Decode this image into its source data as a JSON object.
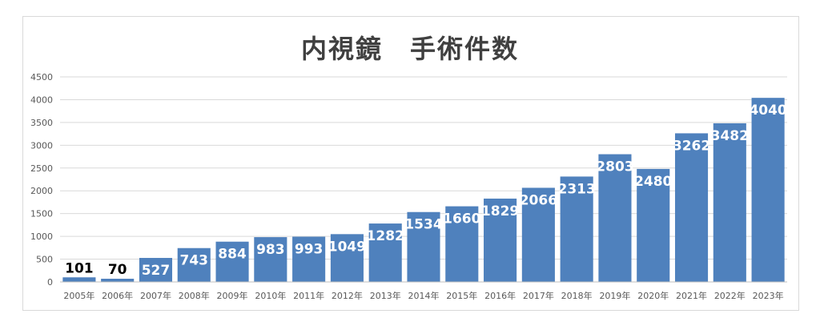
{
  "chart_data": {
    "type": "bar",
    "title": "内視鏡　手術件数",
    "categories": [
      "2005年",
      "2006年",
      "2007年",
      "2008年",
      "2009年",
      "2010年",
      "2011年",
      "2012年",
      "2013年",
      "2014年",
      "2015年",
      "2016年",
      "2017年",
      "2018年",
      "2019年",
      "2020年",
      "2021年",
      "2022年",
      "2023年"
    ],
    "values": [
      101,
      70,
      527,
      743,
      884,
      983,
      993,
      1049,
      1282,
      1534,
      1660,
      1829,
      2066,
      2313,
      2803,
      2480,
      3262,
      3482,
      4040
    ],
    "ylim": [
      0,
      4500
    ],
    "yticks": [
      0,
      500,
      1000,
      1500,
      2000,
      2500,
      3000,
      3500,
      4000,
      4500
    ],
    "grid": true,
    "data_labels": true,
    "bar_color": "#4f81bd",
    "grid_color": "#d9d9d9"
  }
}
